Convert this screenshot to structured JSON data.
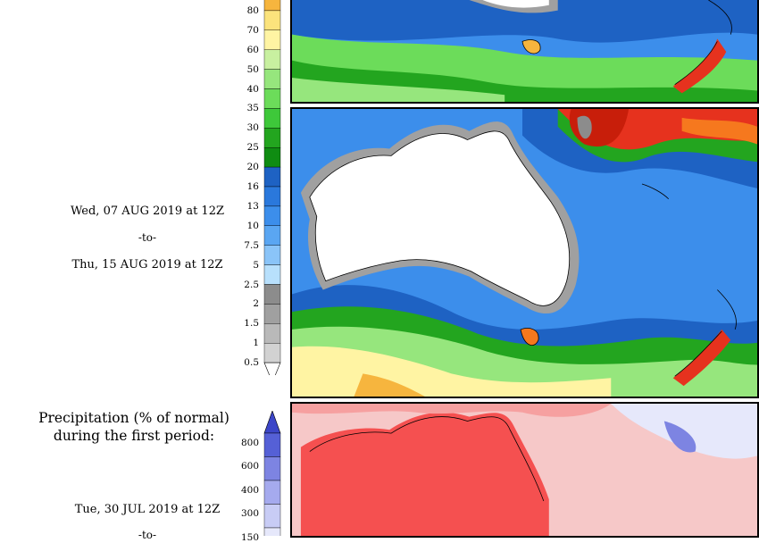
{
  "total_period": {
    "start": "Wed, 07 AUG 2019 at 12Z",
    "separator": "-to-",
    "end": "Thu, 15 AUG 2019 at 12Z"
  },
  "percent_panel": {
    "heading_line1": "Precipitation (% of normal)",
    "heading_line2": "during the first period:",
    "start": "Tue, 30 JUL 2019 at 12Z",
    "separator": "-to-"
  },
  "precip_scale": {
    "labels": [
      "80",
      "70",
      "60",
      "50",
      "40",
      "35",
      "30",
      "25",
      "20",
      "16",
      "13",
      "10",
      "7.5",
      "5",
      "2.5",
      "2",
      "1.5",
      "1",
      "0.5"
    ],
    "colors": [
      "#f6b53e",
      "#fbe37c",
      "#fff4a3",
      "#c8f0a0",
      "#96e67d",
      "#6cdc5a",
      "#3ec83a",
      "#23a51f",
      "#0f8c12",
      "#1e62c3",
      "#2a78dc",
      "#3c8eeb",
      "#5aa6f2",
      "#8ac4f8",
      "#b8e0fc",
      "#8c8c8c",
      "#a0a0a0",
      "#b9b9b9",
      "#d2d2d2"
    ]
  },
  "percent_scale": {
    "labels": [
      "800",
      "600",
      "400",
      "300",
      "150"
    ],
    "colors": [
      "#5560d6",
      "#7d84e2",
      "#a5aaee",
      "#c8ccf5",
      "#e6e8fb"
    ]
  },
  "map_palette": {
    "land_dry": "#ffffff",
    "deep_red": "#c81e0a",
    "red": "#e6321e",
    "orange": "#f6781e",
    "pink_light": "#f6c8c8",
    "red_dry": "#f55050"
  }
}
